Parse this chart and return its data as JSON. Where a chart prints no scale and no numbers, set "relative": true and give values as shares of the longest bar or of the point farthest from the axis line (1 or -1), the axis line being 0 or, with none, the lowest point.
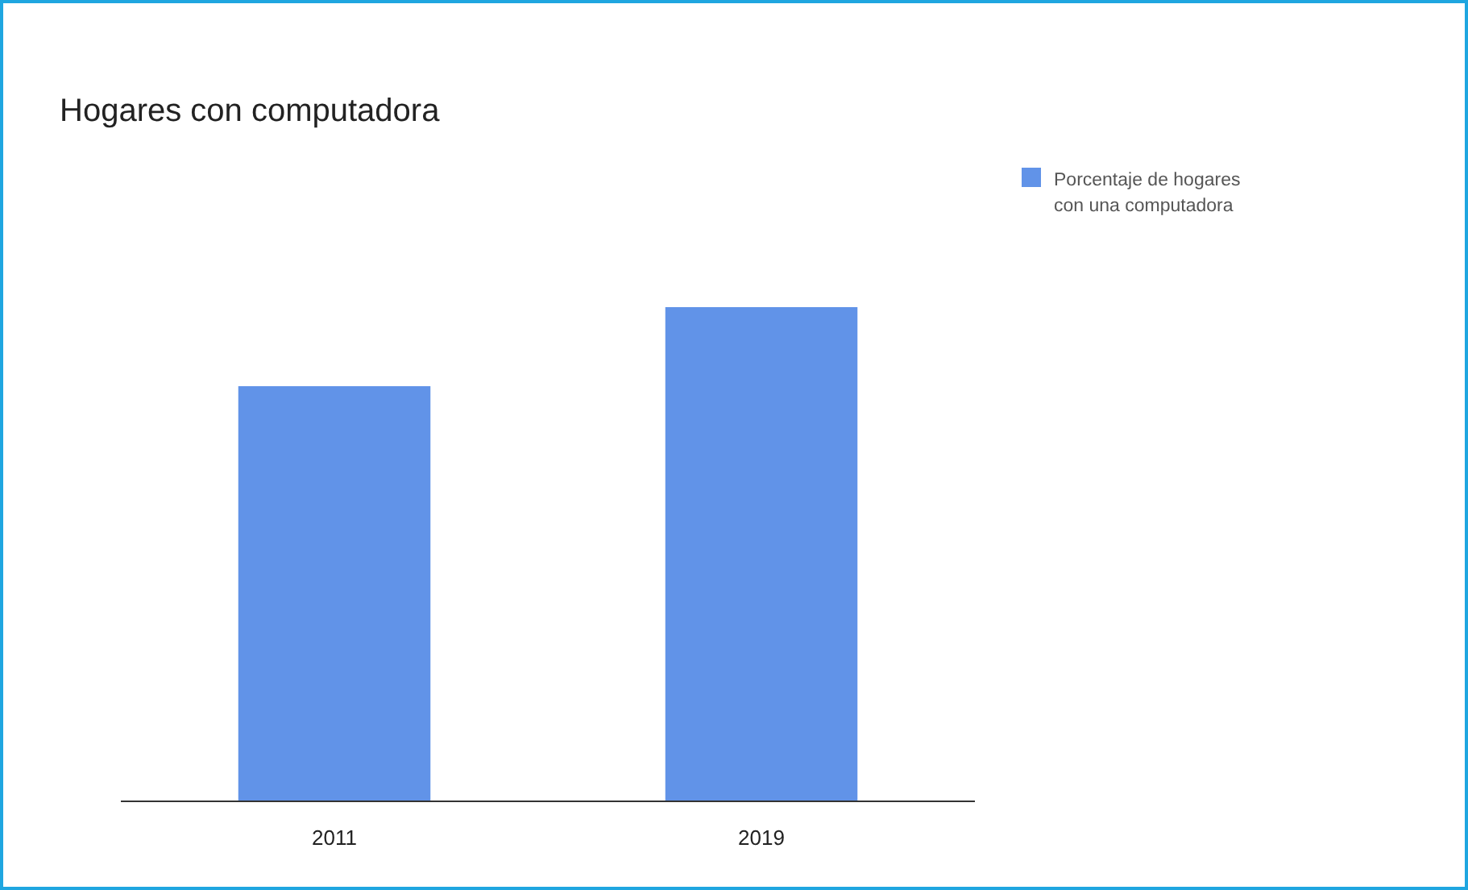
{
  "chart_data": {
    "type": "bar",
    "title": "Hogares con computadora",
    "relative": true,
    "categories": [
      "2011",
      "2019"
    ],
    "series": [
      {
        "name": "Porcentaje de hogares con una computadora",
        "color": "#6193e8",
        "values": [
          0.84,
          1
        ]
      }
    ],
    "legend": "right"
  }
}
